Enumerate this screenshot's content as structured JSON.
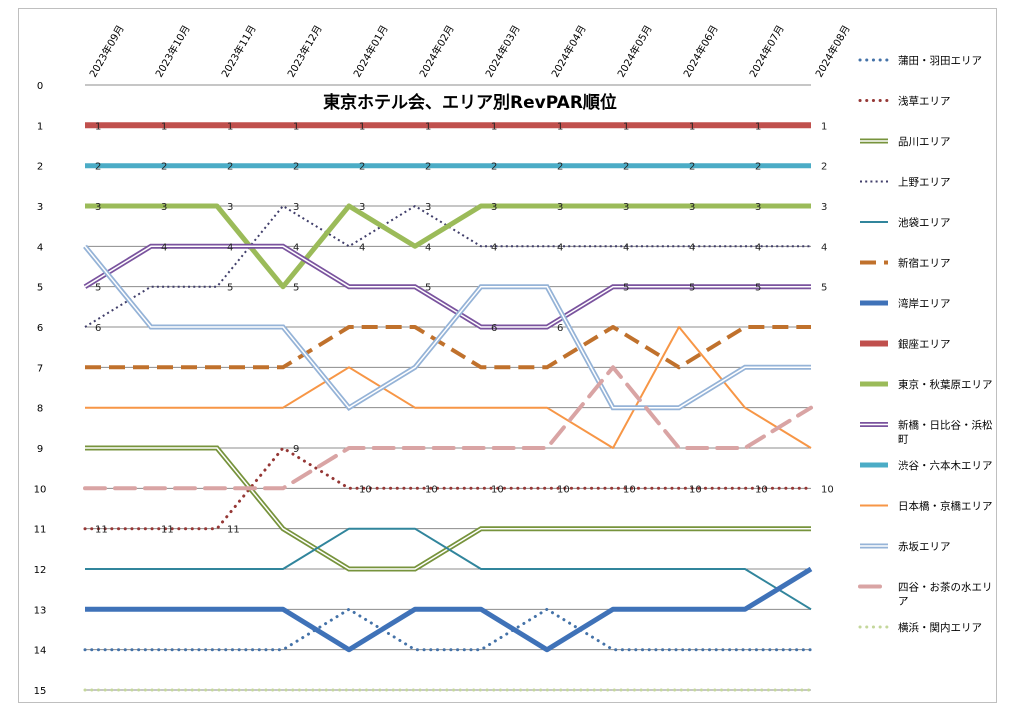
{
  "chart_data": {
    "type": "line",
    "title": "東京ホテル会、エリア別RevPAR順位",
    "xlabel": "",
    "ylabel": "",
    "y_reversed": true,
    "ylim": [
      0,
      15
    ],
    "yticks": [
      "0",
      "1",
      "2",
      "3",
      "4",
      "5",
      "6",
      "7",
      "8",
      "9",
      "10",
      "11",
      "12",
      "13",
      "14",
      "15"
    ],
    "grid": true,
    "legend_position": "right",
    "categories": [
      "2023年09月",
      "2023年10月",
      "2023年11月",
      "2023年12月",
      "2024年01月",
      "2024年02月",
      "2024年03月",
      "2024年04月",
      "2024年05月",
      "2024年06月",
      "2024年07月",
      "2024年08月"
    ],
    "series": [
      {
        "name": "蒲田・羽田エリア",
        "color": "#4472a8",
        "style": "dot-round",
        "width": 3,
        "values": [
          14,
          14,
          14,
          14,
          13,
          14,
          14,
          13,
          14,
          14,
          14,
          14
        ],
        "labels": false
      },
      {
        "name": "浅草エリア",
        "color": "#953735",
        "style": "dot-round",
        "width": 3,
        "values": [
          11,
          11,
          11,
          9,
          10,
          10,
          10,
          10,
          10,
          10,
          10,
          10
        ],
        "labels": true
      },
      {
        "name": "品川エリア",
        "color": "#77933c",
        "style": "double",
        "width": 3,
        "values": [
          9,
          9,
          9,
          11,
          12,
          12,
          11,
          11,
          11,
          11,
          11,
          11
        ],
        "labels": false
      },
      {
        "name": "上野エリア",
        "color": "#403e6a",
        "style": "dot-square",
        "width": 2,
        "values": [
          6,
          5,
          5,
          3,
          4,
          3,
          4,
          4,
          4,
          4,
          4,
          4
        ],
        "labels": true
      },
      {
        "name": "池袋エリア",
        "color": "#31859c",
        "style": "solid",
        "width": 2,
        "values": [
          12,
          12,
          12,
          12,
          11,
          11,
          12,
          12,
          12,
          12,
          12,
          13
        ],
        "labels": false
      },
      {
        "name": "新宿エリア",
        "color": "#c0712c",
        "style": "dash",
        "width": 4,
        "values": [
          7,
          7,
          7,
          7,
          6,
          6,
          7,
          7,
          6,
          7,
          6,
          6
        ],
        "labels": false
      },
      {
        "name": "湾岸エリア",
        "color": "#3f72b8",
        "style": "solid",
        "width": 5,
        "values": [
          13,
          13,
          13,
          13,
          14,
          13,
          13,
          14,
          13,
          13,
          13,
          12
        ],
        "labels": false
      },
      {
        "name": "銀座エリア",
        "color": "#c0504d",
        "style": "solid",
        "width": 6,
        "values": [
          1,
          1,
          1,
          1,
          1,
          1,
          1,
          1,
          1,
          1,
          1,
          1
        ],
        "labels": true
      },
      {
        "name": "東京・秋葉原エリア",
        "color": "#9bbb59",
        "style": "solid",
        "width": 5,
        "values": [
          3,
          3,
          3,
          5,
          3,
          4,
          3,
          3,
          3,
          3,
          3,
          3
        ],
        "labels": true
      },
      {
        "name": "新橋・日比谷・浜松町",
        "color": "#7a539e",
        "style": "double",
        "width": 3,
        "values": [
          5,
          4,
          4,
          4,
          5,
          5,
          6,
          6,
          5,
          5,
          5,
          5
        ],
        "labels": true
      },
      {
        "name": "渋谷・六本木エリア",
        "color": "#4bacc6",
        "style": "solid",
        "width": 5,
        "values": [
          2,
          2,
          2,
          2,
          2,
          2,
          2,
          2,
          2,
          2,
          2,
          2
        ],
        "labels": true
      },
      {
        "name": "日本橋・京橋エリア",
        "color": "#f79646",
        "style": "solid",
        "width": 2,
        "values": [
          8,
          8,
          8,
          8,
          7,
          8,
          8,
          8,
          9,
          6,
          8,
          9
        ],
        "labels": false
      },
      {
        "name": "赤坂エリア",
        "color": "#95b3d7",
        "style": "double",
        "width": 3,
        "values": [
          4,
          6,
          6,
          6,
          8,
          7,
          5,
          5,
          8,
          8,
          7,
          7
        ],
        "labels": false
      },
      {
        "name": "四谷・お茶の水エリア",
        "color": "#d9a4a4",
        "style": "dash-long",
        "width": 4,
        "values": [
          10,
          10,
          10,
          10,
          9,
          9,
          9,
          9,
          7,
          9,
          9,
          8
        ],
        "labels": false
      },
      {
        "name": "横浜・関内エリア",
        "color": "#c4d79b",
        "style": "dot-round",
        "width": 3,
        "values": [
          15,
          15,
          15,
          15,
          15,
          15,
          15,
          15,
          15,
          15,
          15,
          15
        ],
        "labels": false
      }
    ],
    "data_labels": [
      {
        "series": "浅草エリア",
        "text": [
          "11",
          "11",
          "11",
          "9",
          "10",
          "10",
          "10",
          "10",
          "10",
          "10",
          "10",
          "10"
        ]
      },
      {
        "series": "上野エリア",
        "text": [
          "6",
          "",
          "",
          "",
          "4",
          "",
          "",
          "",
          "",
          "",
          "4",
          "4"
        ]
      },
      {
        "series": "銀座エリア",
        "text": [
          "1",
          "1",
          "1",
          "1",
          "1",
          "1",
          "1",
          "1",
          "1",
          "1",
          "1",
          "1"
        ]
      },
      {
        "series": "東京・秋葉原エリア",
        "text": [
          "3",
          "3",
          "3",
          "5",
          "3",
          "4",
          "3",
          "3",
          "3",
          "3",
          "3",
          "3"
        ]
      },
      {
        "series": "新橋・日比谷・浜松町",
        "text": [
          "5",
          "4",
          "4",
          "4",
          "",
          "5",
          "6",
          "6",
          "5",
          "5",
          "5",
          "5"
        ]
      },
      {
        "series": "渋谷・六本木エリア",
        "text": [
          "2",
          "2",
          "2",
          "2",
          "2",
          "2",
          "2",
          "2",
          "2",
          "2",
          "2",
          "2"
        ]
      },
      {
        "series": "上野エリア-top",
        "text": [
          "",
          "",
          "5",
          "3",
          "",
          "3",
          "",
          "",
          "",
          "",
          "",
          ""
        ]
      },
      {
        "series": "上野エリア-mid",
        "text": [
          "",
          "",
          "",
          "",
          "",
          "",
          "4",
          "4",
          "4",
          "4",
          "",
          ""
        ]
      }
    ]
  }
}
